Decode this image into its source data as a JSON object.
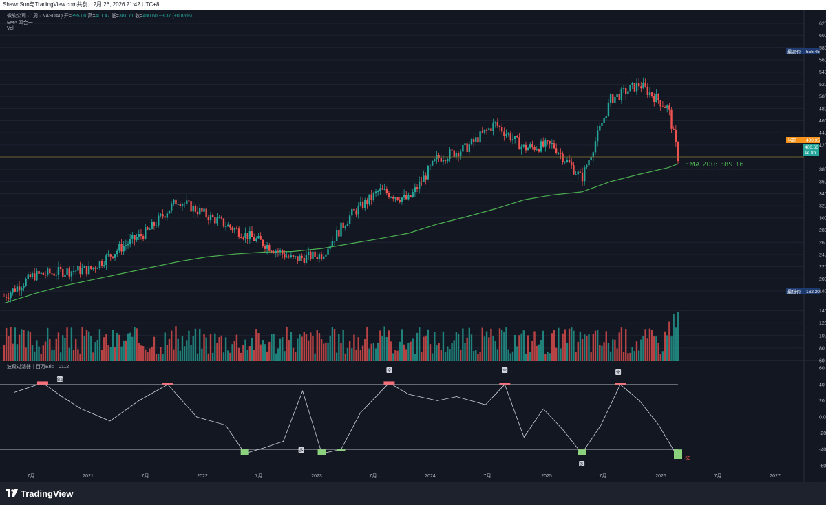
{
  "header": {
    "attribution": "ShawnSun与TradingView.com共创，2月 26, 2026 21:42 UTC+8"
  },
  "legend": {
    "symbol": "微软公司 · 1周 · NASDAQ",
    "open_label": "开=",
    "open": "395.00",
    "high_label": "高=",
    "high": "401.47",
    "low_label": "低=",
    "low": "381.71",
    "close_label": "收=",
    "close": "400.60",
    "change": "+3.37 (+0.85%)",
    "ema_indicator": "EMA 四合一",
    "volume_indicator": "Vol"
  },
  "indicator_legend": {
    "title": "波段过滤器｜百万Eric｜0112"
  },
  "price_axis": {
    "labels": [
      "620.00",
      "600.00",
      "580.00",
      "560.00",
      "540.00",
      "520.00",
      "500.00",
      "480.00",
      "460.00",
      "440.00",
      "420.00",
      "380.00",
      "360.00",
      "340.00",
      "320.00",
      "300.00",
      "280.00",
      "260.00",
      "240.00",
      "220.00",
      "200.00",
      "180.00",
      "140.00",
      "120.00",
      "100.00",
      "80.00",
      "60.00"
    ],
    "highest_label": "最高价",
    "highest_value": "555.45",
    "lowest_label": "最低价",
    "lowest_value": "162.30",
    "current_tag": "当前",
    "current_value": "400.95",
    "last_value": "400.60",
    "countdown": "1d 8h"
  },
  "ema_label": "EMA 200: 389.16",
  "osc_axis": {
    "labels": [
      "60.00",
      "40.00",
      "20.00",
      "0.0000",
      "-20.00",
      "-40.00",
      "-60.00"
    ],
    "current_value": "-50"
  },
  "time_axis": {
    "labels": [
      "7月",
      "2021",
      "7月",
      "2022",
      "7月",
      "2023",
      "7月",
      "2024",
      "7月",
      "2025",
      "7月",
      "2026",
      "7月",
      "2027"
    ]
  },
  "markers": {
    "sell_short": "空",
    "sell_short_1": "空1",
    "buy_long": "多"
  },
  "colors": {
    "up": "#26a69a",
    "down": "#ef5350",
    "ema": "#4caf50",
    "background": "#131722",
    "overbought": "#f56f7b",
    "oversold": "#8bd27c"
  },
  "footer": {
    "brand": "TradingView"
  },
  "chart_data": [
    {
      "type": "candlestick",
      "title": "微软公司 · 1周 · NASDAQ",
      "ylim": [
        150,
        625
      ],
      "x": [
        "2020-04",
        "2020-07",
        "2020-10",
        "2021-01",
        "2021-04",
        "2021-07",
        "2021-10",
        "2022-01",
        "2022-04",
        "2022-07",
        "2022-10",
        "2023-01",
        "2023-04",
        "2023-07",
        "2023-10",
        "2024-01",
        "2024-04",
        "2024-07",
        "2024-10",
        "2025-01",
        "2025-04",
        "2025-07",
        "2025-10",
        "2026-01",
        "2026-02"
      ],
      "close_path": [
        171,
        205,
        212,
        216,
        250,
        279,
        330,
        305,
        281,
        258,
        232,
        240,
        305,
        345,
        330,
        398,
        415,
        455,
        415,
        420,
        365,
        495,
        520,
        480,
        400
      ],
      "series": [
        {
          "name": "EMA 200",
          "values": [
            160,
            175,
            188,
            198,
            208,
            218,
            228,
            236,
            241,
            244,
            245,
            250,
            258,
            266,
            275,
            290,
            302,
            315,
            330,
            338,
            343,
            360,
            372,
            383,
            389
          ]
        }
      ],
      "annotations": [
        "最高价 555.45",
        "最低价 162.30",
        "EMA 200: 389.16"
      ]
    },
    {
      "type": "bar",
      "title": "Vol",
      "ylim": [
        50,
        170
      ],
      "values_peak": 165
    },
    {
      "type": "line",
      "title": "波段过滤器｜百万Eric｜0112",
      "ylim": [
        -65,
        65
      ],
      "x": [
        "2020-05",
        "2020-08",
        "2020-10",
        "2020-12",
        "2021-03",
        "2021-06",
        "2021-09",
        "2021-12",
        "2022-03",
        "2022-05",
        "2022-07",
        "2022-09",
        "2022-11",
        "2023-01",
        "2023-03",
        "2023-05",
        "2023-08",
        "2023-10",
        "2024-01",
        "2024-03",
        "2024-06",
        "2024-08",
        "2024-10",
        "2024-12",
        "2025-02",
        "2025-04",
        "2025-06",
        "2025-08",
        "2025-10",
        "2025-12",
        "2026-02"
      ],
      "values": [
        30,
        42,
        25,
        10,
        -5,
        20,
        40,
        0,
        -10,
        -45,
        -38,
        -30,
        32,
        -45,
        -40,
        5,
        42,
        28,
        20,
        25,
        15,
        40,
        -25,
        10,
        -15,
        -45,
        -10,
        40,
        20,
        -10,
        -50
      ],
      "reference_lines": [
        40,
        -40
      ]
    }
  ]
}
